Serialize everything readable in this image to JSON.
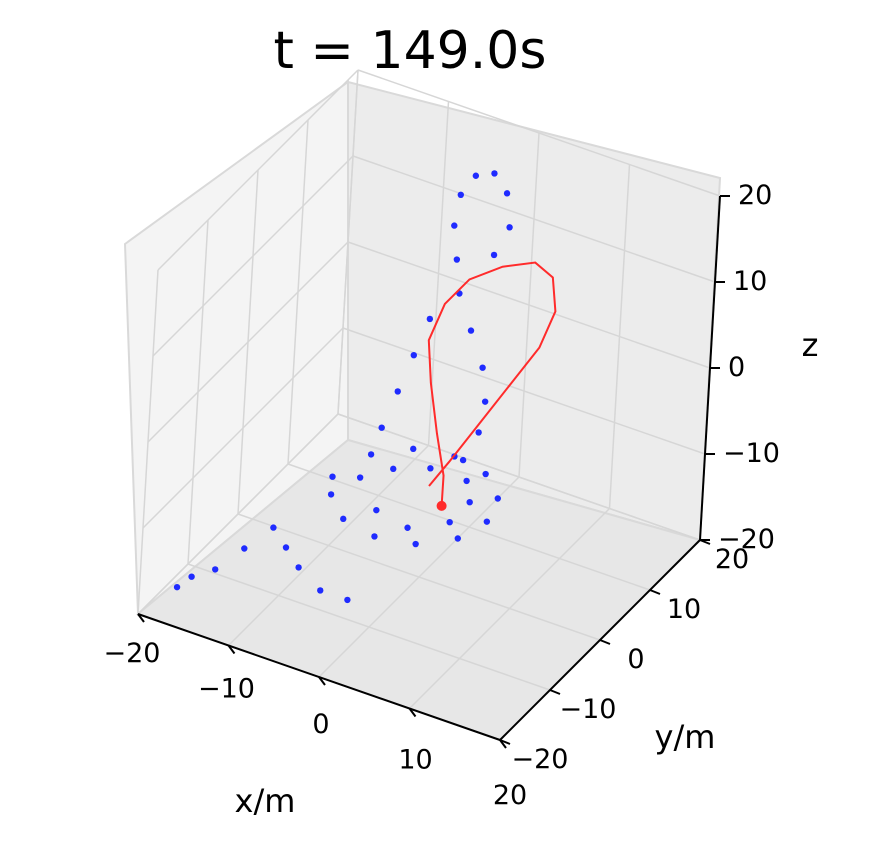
{
  "chart_data": {
    "type": "scatter3d",
    "title": "t = 149.0s",
    "xlabel": "x/m",
    "ylabel": "y/m",
    "zlabel": "z",
    "xlim": [
      -20,
      20
    ],
    "ylim": [
      -20,
      20
    ],
    "zlim": [
      -20,
      20
    ],
    "x_ticks": [
      "−20",
      "−10",
      "0",
      "10",
      "20"
    ],
    "y_ticks": [
      "−20",
      "−10",
      "0",
      "10",
      "20"
    ],
    "z_ticks": [
      "−20",
      "−10",
      "0",
      "10",
      "20"
    ],
    "grid": true,
    "colors": {
      "particles": "#1f2bff",
      "trajectory": "#ff2b2b",
      "pane": "#f2f2f2",
      "grid": "#d6d6d6"
    },
    "series": [
      {
        "kind": "particle-cloud",
        "color": "#1f2bff",
        "points": [
          [
            -10,
            0,
            -12
          ],
          [
            -8,
            4,
            -11
          ],
          [
            -5,
            7,
            -11
          ],
          [
            -1,
            8,
            -11
          ],
          [
            3,
            7,
            -11
          ],
          [
            6,
            4,
            -11
          ],
          [
            7,
            0,
            -11
          ],
          [
            6,
            -4,
            -11
          ],
          [
            3,
            -7,
            -11
          ],
          [
            -1,
            -8,
            -11
          ],
          [
            -5,
            -7,
            -11
          ],
          [
            -8,
            -4,
            -11
          ],
          [
            -7,
            0,
            -11
          ],
          [
            -5,
            3,
            -11
          ],
          [
            -2,
            5,
            -11
          ],
          [
            2,
            5,
            -11
          ],
          [
            4,
            2,
            -11
          ],
          [
            4,
            -2,
            -11
          ],
          [
            1,
            -5,
            -11
          ],
          [
            -3,
            -4,
            -11
          ],
          [
            -12,
            -8,
            -14
          ],
          [
            -14,
            -10,
            -16
          ],
          [
            -16,
            -12,
            -18
          ],
          [
            -18,
            -13,
            -19
          ],
          [
            -19,
            -14,
            -20
          ],
          [
            -10,
            -9,
            -15
          ],
          [
            -8,
            -10,
            -16
          ],
          [
            -5,
            -11,
            -17
          ],
          [
            -2,
            -11,
            -17
          ],
          [
            2,
            4,
            -8
          ],
          [
            3,
            5,
            -5
          ],
          [
            3,
            6,
            -2
          ],
          [
            2,
            7,
            1
          ],
          [
            0,
            8,
            4
          ],
          [
            -2,
            9,
            7
          ],
          [
            -3,
            10,
            10
          ],
          [
            -4,
            11,
            13
          ],
          [
            -4,
            12,
            16
          ],
          [
            -3,
            13,
            18
          ],
          [
            -1,
            13,
            19
          ],
          [
            1,
            12,
            18
          ],
          [
            2,
            11,
            15
          ],
          [
            1,
            10,
            12
          ],
          [
            -6,
            2,
            -6
          ],
          [
            -5,
            3,
            -2
          ],
          [
            -4,
            4,
            2
          ],
          [
            -3,
            5,
            6
          ]
        ]
      },
      {
        "kind": "trajectory",
        "color": "#ff2b2b",
        "points": [
          [
            2,
            0,
            -11
          ],
          [
            1,
            2,
            -9
          ],
          [
            -1,
            4,
            -6
          ],
          [
            -3,
            6,
            -2
          ],
          [
            -4,
            7,
            2
          ],
          [
            -3,
            8,
            6
          ],
          [
            -1,
            9,
            9
          ],
          [
            2,
            10,
            11
          ],
          [
            5,
            11,
            12
          ],
          [
            7,
            11,
            11
          ],
          [
            8,
            10,
            8
          ],
          [
            7,
            9,
            4
          ],
          [
            5,
            7,
            0
          ],
          [
            3,
            5,
            -4
          ],
          [
            1,
            3,
            -8
          ],
          [
            0,
            1,
            -10
          ]
        ]
      }
    ]
  }
}
